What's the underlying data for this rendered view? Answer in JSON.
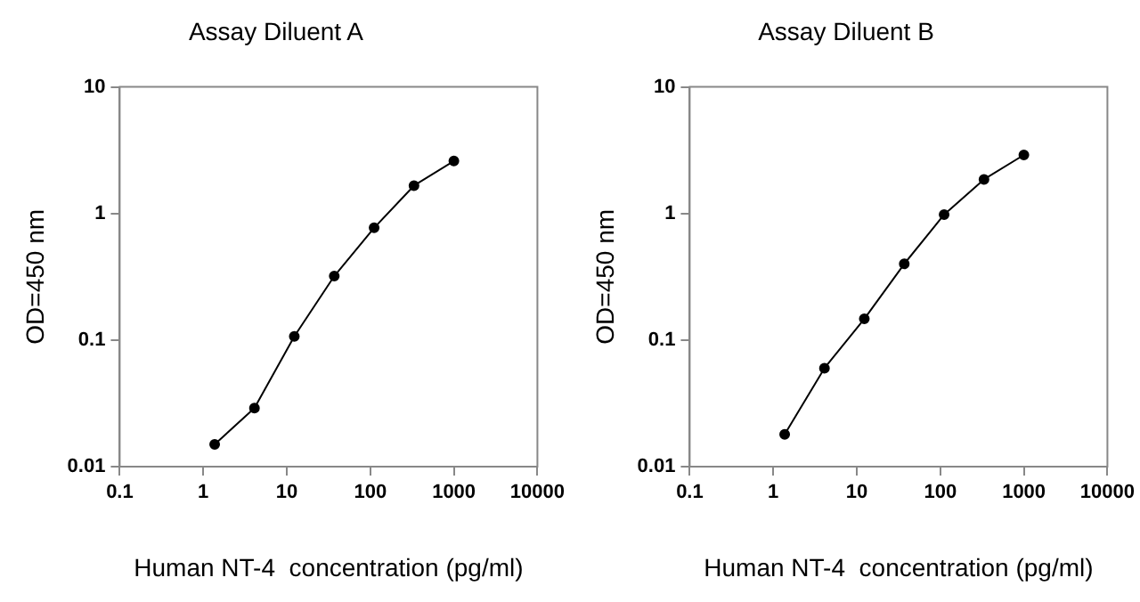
{
  "chart_data": [
    {
      "type": "line",
      "title": "Assay Diluent A",
      "xlabel": "Human NT-4  concentration (pg/ml)",
      "ylabel": "OD=450 nm",
      "log": "xy",
      "grid": false,
      "legend": false,
      "marker": "circle",
      "line_style": "solid",
      "xlim": [
        0.1,
        10000
      ],
      "xticks": [
        0.1,
        1,
        10,
        100,
        1000,
        10000
      ],
      "ylim": [
        0.01,
        10
      ],
      "yticks": [
        0.01,
        0.1,
        1,
        10
      ],
      "series": [
        {
          "color": "#000000",
          "x": [
            1.37,
            4.1,
            12.3,
            37,
            111,
            333,
            1000
          ],
          "values": [
            0.015,
            0.029,
            0.107,
            0.32,
            0.77,
            1.66,
            2.6
          ]
        }
      ]
    },
    {
      "type": "line",
      "title": "Assay Diluent B",
      "xlabel": "Human NT-4  concentration (pg/ml)",
      "ylabel": "OD=450 nm",
      "log": "xy",
      "grid": false,
      "legend": false,
      "marker": "circle",
      "line_style": "solid",
      "xlim": [
        0.1,
        10000
      ],
      "xticks": [
        0.1,
        1,
        10,
        100,
        1000,
        10000
      ],
      "ylim": [
        0.01,
        10
      ],
      "yticks": [
        0.01,
        0.1,
        1,
        10
      ],
      "series": [
        {
          "color": "#000000",
          "x": [
            1.37,
            4.1,
            12.3,
            37,
            111,
            333,
            1000
          ],
          "values": [
            0.018,
            0.06,
            0.147,
            0.4,
            0.98,
            1.86,
            2.9
          ]
        }
      ]
    }
  ]
}
